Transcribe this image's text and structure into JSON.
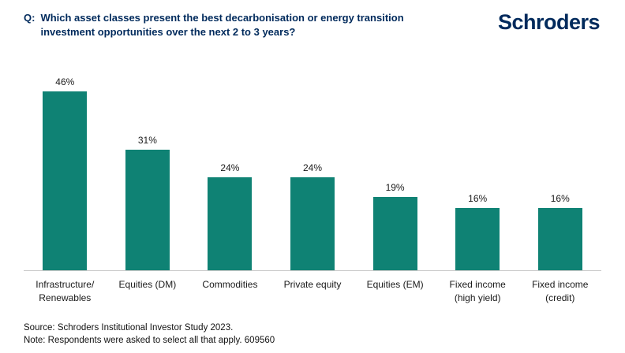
{
  "header": {
    "question_prefix": "Q:",
    "question_text": "Which asset classes present the best decarbonisation or energy transition investment opportunities over the next 2 to 3 years?",
    "logo_text": "Schroders"
  },
  "chart_data": {
    "type": "bar",
    "title": "Which asset classes present the best decarbonisation or energy transition investment opportunities over the next 2 to 3 years?",
    "categories": [
      "Infrastructure/\nRenewables",
      "Equities (DM)",
      "Commodities",
      "Private equity",
      "Equities (EM)",
      "Fixed income\n(high yield)",
      "Fixed income\n(credit)"
    ],
    "values": [
      46,
      31,
      24,
      24,
      19,
      16,
      16
    ],
    "value_labels": [
      "46%",
      "31%",
      "24%",
      "24%",
      "19%",
      "16%",
      "16%"
    ],
    "xlabel": "",
    "ylabel": "",
    "ylim": [
      0,
      50
    ],
    "grid": false,
    "legend": "none",
    "bar_color": "#0f8274"
  },
  "footer": {
    "source": "Source: Schroders Institutional Investor Study 2023.",
    "note": "Note: Respondents were asked to select all that apply. 609560"
  },
  "colors": {
    "brand_blue": "#002a5c",
    "bar_teal": "#0f8274",
    "baseline_gray": "#c9c9c9"
  }
}
